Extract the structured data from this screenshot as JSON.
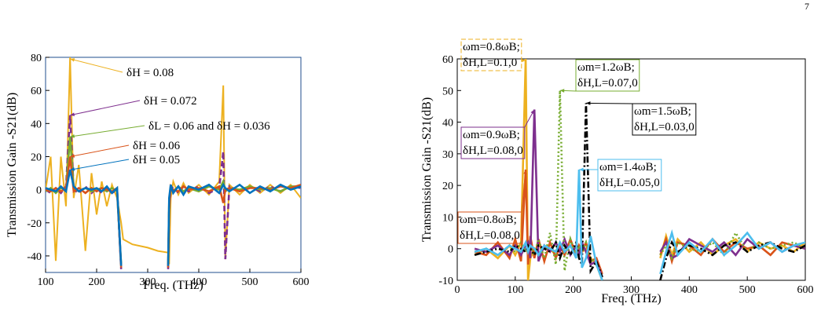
{
  "page_number": "7",
  "chart_data": [
    {
      "type": "line",
      "y_label": "Transmission Gain -S21(dB)",
      "x_label": "Freq. (THz)",
      "xlim": [
        100,
        600
      ],
      "ylim": [
        -50,
        80
      ],
      "xticks": [
        100,
        200,
        300,
        400,
        500,
        600
      ],
      "yticks": [
        -40,
        -20,
        0,
        20,
        40,
        60,
        80
      ],
      "x": [
        100,
        110,
        120,
        130,
        140,
        148,
        155,
        165,
        178,
        190,
        200,
        210,
        220,
        230,
        240,
        248,
        252,
        270,
        300,
        320,
        340,
        342,
        345,
        350,
        360,
        370,
        380,
        400,
        420,
        440,
        448,
        452,
        460,
        480,
        500,
        520,
        540,
        560,
        580,
        600
      ],
      "series": [
        {
          "color": "#EDB120",
          "dash": "solid",
          "values": [
            0,
            20,
            -43,
            20,
            -10,
            80,
            -5,
            15,
            -37,
            10,
            -15,
            5,
            -10,
            3,
            -5,
            -20,
            -30,
            -33,
            -35,
            -37,
            -38,
            -45,
            -5,
            5,
            -3,
            4,
            -2,
            3,
            -3,
            5,
            63,
            -42,
            3,
            -3,
            3,
            -2,
            3,
            -2,
            3,
            -5
          ]
        },
        {
          "color": "#7E2F8E",
          "dash": "dashed",
          "values": [
            0,
            -2,
            1,
            -2,
            2,
            45,
            0,
            -2,
            2,
            -2,
            1,
            -2,
            1,
            -2,
            0,
            -48,
            null,
            null,
            null,
            null,
            -48,
            -10,
            0,
            2,
            -2,
            2,
            -1,
            2,
            -2,
            1,
            23,
            -42,
            2,
            -1,
            2,
            -1,
            2,
            -1,
            2,
            1
          ]
        },
        {
          "color": "#77AC30",
          "dash": "solid",
          "values": [
            -1,
            1,
            -2,
            1,
            0,
            32,
            1,
            -1,
            1,
            -1,
            0,
            1,
            -1,
            1,
            -1,
            -45,
            null,
            null,
            null,
            null,
            -45,
            -8,
            1,
            -1,
            2,
            -1,
            1,
            -1,
            2,
            0,
            5,
            -1,
            1,
            0,
            2,
            0,
            1,
            -1,
            2,
            2
          ]
        },
        {
          "color": "#D95319",
          "dash": "solid",
          "values": [
            0,
            -1,
            1,
            -1,
            1,
            20,
            -1,
            1,
            -2,
            1,
            -1,
            1,
            0,
            -1,
            1,
            -47,
            null,
            null,
            null,
            null,
            -47,
            -12,
            2,
            0,
            -1,
            2,
            0,
            1,
            -1,
            2,
            -8,
            0,
            1,
            -1,
            1,
            1,
            0,
            2,
            1,
            3
          ]
        },
        {
          "color": "#0072BD",
          "dash": "solid",
          "values": [
            1,
            0,
            -1,
            2,
            -1,
            12,
            2,
            -1,
            1,
            0,
            1,
            -1,
            2,
            -2,
            1,
            -46,
            null,
            null,
            null,
            null,
            -46,
            -5,
            3,
            -2,
            2,
            -3,
            2,
            0,
            3,
            -2,
            3,
            1,
            -1,
            3,
            -2,
            2,
            -1,
            3,
            0,
            2
          ]
        }
      ],
      "annotations": [
        {
          "series": 0,
          "lines": [
            "δH = 0.08"
          ]
        },
        {
          "series": 1,
          "lines": [
            "δH = 0.072"
          ]
        },
        {
          "series": 2,
          "lines": [
            "δL = 0.06 and δH = 0.036"
          ]
        },
        {
          "series": 3,
          "lines": [
            "δH = 0.06"
          ]
        },
        {
          "series": 4,
          "lines": [
            "δH = 0.05"
          ]
        }
      ]
    },
    {
      "type": "line",
      "y_label": "Transmission Gain -S21(dB)",
      "x_label": "Freq. (THz)",
      "xlim": [
        0,
        600
      ],
      "ylim": [
        -10,
        60
      ],
      "xticks": [
        0,
        100,
        200,
        300,
        400,
        500,
        600
      ],
      "yticks": [
        -10,
        0,
        10,
        20,
        30,
        40,
        50,
        60
      ],
      "x": [
        30,
        50,
        70,
        90,
        100,
        110,
        118,
        122,
        126,
        133,
        140,
        150,
        160,
        170,
        177,
        185,
        195,
        205,
        210,
        215,
        222,
        230,
        240,
        250,
        300,
        350,
        360,
        370,
        380,
        400,
        420,
        440,
        460,
        480,
        500,
        520,
        540,
        560,
        580,
        600
      ],
      "series": [
        {
          "color": "#EDB120",
          "dash": "solid",
          "values": [
            -2,
            0,
            -3,
            1,
            -2,
            2,
            60,
            -10,
            -3,
            0,
            -2,
            1,
            0,
            -2,
            0,
            -1,
            1,
            -2,
            0,
            -1,
            0,
            -3,
            -5,
            -10,
            null,
            -3,
            4,
            -2,
            3,
            -1,
            2,
            -2,
            1,
            3,
            -1,
            2,
            0,
            1,
            -1,
            2
          ]
        },
        {
          "color": "#D95319",
          "dash": "solid",
          "values": [
            -1,
            -2,
            2,
            -3,
            3,
            -4,
            25,
            -5,
            4,
            -3,
            3,
            -4,
            2,
            -3,
            1,
            -2,
            3,
            -2,
            1,
            -1,
            2,
            -4,
            -3,
            -8,
            null,
            -2,
            3,
            -4,
            2,
            1,
            -2,
            3,
            -1,
            2,
            0,
            1,
            -2,
            2,
            1,
            0
          ]
        },
        {
          "color": "#7E2F8E",
          "dash": "solid",
          "values": [
            0,
            -1,
            1,
            -2,
            1,
            -2,
            1,
            2,
            -3,
            44,
            -4,
            1,
            -1,
            2,
            -1,
            3,
            -2,
            1,
            -2,
            2,
            -1,
            -5,
            -4,
            -9,
            null,
            -1,
            2,
            -3,
            -2,
            3,
            1,
            -1,
            2,
            -2,
            3,
            0,
            2,
            -1,
            1,
            0
          ]
        },
        {
          "color": "#77AC30",
          "dash": "dotted",
          "values": [
            -1,
            0,
            -2,
            1,
            -1,
            2,
            -1,
            0,
            1,
            -2,
            3,
            -3,
            5,
            -5,
            50,
            -7,
            3,
            -2,
            1,
            -1,
            2,
            -3,
            -5,
            -10,
            null,
            -2,
            1,
            -3,
            2,
            0,
            -1,
            2,
            -2,
            5,
            -1,
            2,
            0,
            1,
            2,
            0
          ]
        },
        {
          "color": "#000000",
          "dash": "dashdot",
          "values": [
            -2,
            -1,
            0,
            -1,
            1,
            0,
            -1,
            1,
            0,
            -2,
            1,
            0,
            -1,
            2,
            -3,
            1,
            -2,
            2,
            -3,
            -5,
            46,
            -7,
            -4,
            -9,
            null,
            -10,
            -3,
            2,
            -1,
            1,
            0,
            -2,
            1,
            2,
            -1,
            1,
            2,
            0,
            -1,
            1
          ]
        },
        {
          "color": "#4DBEEE",
          "dash": "solid",
          "values": [
            -1,
            0,
            -2,
            1,
            0,
            -1,
            2,
            -1,
            1,
            0,
            -2,
            1,
            0,
            -1,
            2,
            -1,
            1,
            -3,
            25,
            -6,
            -3,
            4,
            -5,
            -10,
            null,
            -8,
            -1,
            5,
            -2,
            2,
            -1,
            3,
            -2,
            1,
            5,
            0,
            2,
            -1,
            1,
            2
          ]
        }
      ],
      "annotations": [
        {
          "series": 0,
          "lines": [
            "ωm=0.8ωB;",
            "δH,L=0.1,0"
          ]
        },
        {
          "series": 2,
          "lines": [
            "ωm=0.9ωB;",
            "δH,L=0.08,0"
          ]
        },
        {
          "series": 1,
          "lines": [
            "ωm=0.8ωB;",
            "δH,L=0.08,0"
          ]
        },
        {
          "series": 3,
          "lines": [
            "ωm=1.2ωB;",
            "δH,L=0.07,0"
          ]
        },
        {
          "series": 4,
          "lines": [
            "ωm=1.5ωB;",
            "δH,L=0.03,0"
          ]
        },
        {
          "series": 5,
          "lines": [
            "ωm=1.4ωB;",
            "δH,L=0.05,0"
          ]
        }
      ]
    }
  ]
}
